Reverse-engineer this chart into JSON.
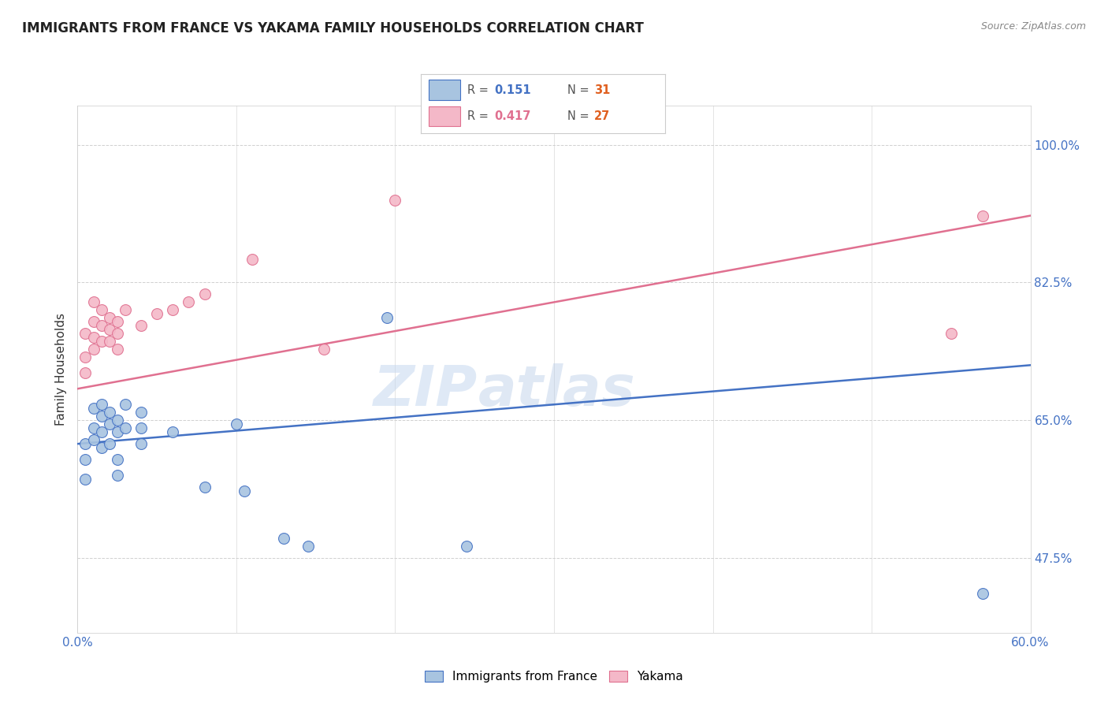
{
  "title": "IMMIGRANTS FROM FRANCE VS YAKAMA FAMILY HOUSEHOLDS CORRELATION CHART",
  "source": "Source: ZipAtlas.com",
  "ylabel": "Family Households",
  "ytick_labels": [
    "47.5%",
    "65.0%",
    "82.5%",
    "100.0%"
  ],
  "ytick_values": [
    0.475,
    0.65,
    0.825,
    1.0
  ],
  "xlim": [
    0.0,
    0.6
  ],
  "ylim": [
    0.38,
    1.05
  ],
  "legend_blue_label": "Immigrants from France",
  "legend_pink_label": "Yakama",
  "R_blue": "0.151",
  "N_blue": "31",
  "R_pink": "0.417",
  "N_pink": "27",
  "watermark_line1": "ZIP",
  "watermark_line2": "atlas",
  "blue_color": "#a8c4e0",
  "pink_color": "#f4b8c8",
  "line_blue": "#4472c4",
  "line_pink": "#e07090",
  "blue_scatter": [
    [
      0.005,
      0.62
    ],
    [
      0.005,
      0.6
    ],
    [
      0.005,
      0.575
    ],
    [
      0.01,
      0.665
    ],
    [
      0.01,
      0.64
    ],
    [
      0.01,
      0.625
    ],
    [
      0.015,
      0.67
    ],
    [
      0.015,
      0.655
    ],
    [
      0.015,
      0.635
    ],
    [
      0.015,
      0.615
    ],
    [
      0.02,
      0.66
    ],
    [
      0.02,
      0.645
    ],
    [
      0.02,
      0.62
    ],
    [
      0.025,
      0.65
    ],
    [
      0.025,
      0.635
    ],
    [
      0.025,
      0.6
    ],
    [
      0.025,
      0.58
    ],
    [
      0.03,
      0.67
    ],
    [
      0.03,
      0.64
    ],
    [
      0.04,
      0.66
    ],
    [
      0.04,
      0.64
    ],
    [
      0.04,
      0.62
    ],
    [
      0.06,
      0.635
    ],
    [
      0.08,
      0.565
    ],
    [
      0.1,
      0.645
    ],
    [
      0.105,
      0.56
    ],
    [
      0.13,
      0.5
    ],
    [
      0.145,
      0.49
    ],
    [
      0.195,
      0.78
    ],
    [
      0.245,
      0.49
    ],
    [
      0.57,
      0.43
    ]
  ],
  "pink_scatter": [
    [
      0.005,
      0.76
    ],
    [
      0.005,
      0.73
    ],
    [
      0.005,
      0.71
    ],
    [
      0.01,
      0.8
    ],
    [
      0.01,
      0.775
    ],
    [
      0.01,
      0.755
    ],
    [
      0.01,
      0.74
    ],
    [
      0.015,
      0.79
    ],
    [
      0.015,
      0.77
    ],
    [
      0.015,
      0.75
    ],
    [
      0.02,
      0.78
    ],
    [
      0.02,
      0.765
    ],
    [
      0.02,
      0.75
    ],
    [
      0.025,
      0.775
    ],
    [
      0.025,
      0.76
    ],
    [
      0.025,
      0.74
    ],
    [
      0.03,
      0.79
    ],
    [
      0.04,
      0.77
    ],
    [
      0.05,
      0.785
    ],
    [
      0.06,
      0.79
    ],
    [
      0.07,
      0.8
    ],
    [
      0.08,
      0.81
    ],
    [
      0.11,
      0.855
    ],
    [
      0.155,
      0.74
    ],
    [
      0.2,
      0.93
    ],
    [
      0.55,
      0.76
    ],
    [
      0.57,
      0.91
    ]
  ]
}
